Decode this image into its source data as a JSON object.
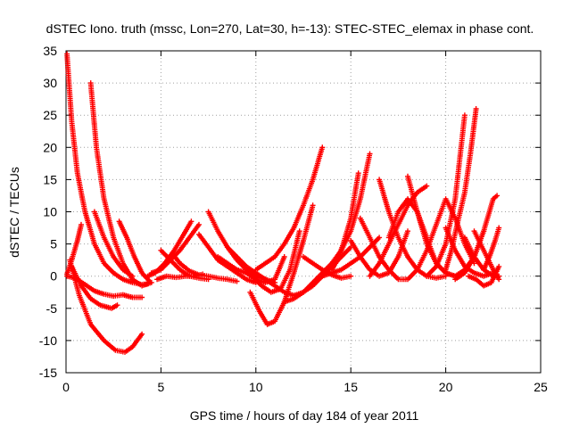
{
  "chart_data": {
    "type": "scatter",
    "title": "dSTEC Iono. truth (mssc, Lon=270, Lat=30, h=-13): STEC-STEC_elemax in phase cont.",
    "xlabel": "GPS time / hours of day 184 of year 2011",
    "ylabel": "dSTEC  / TECUs",
    "xlim": [
      0,
      25
    ],
    "ylim": [
      -15,
      35
    ],
    "x_ticks": [
      "0",
      "5",
      "10",
      "15",
      "20",
      "25"
    ],
    "y_ticks": [
      "-15",
      "-10",
      "-5",
      "0",
      "5",
      "10",
      "15",
      "20",
      "25",
      "30",
      "35"
    ],
    "grid": true,
    "marker": "plus",
    "color": "#ff0000",
    "tracks": [
      {
        "x": [
          0.05,
          0.3,
          0.6,
          1.0,
          1.5,
          2.0,
          2.5,
          3.0,
          3.5,
          4.0,
          4.3
        ],
        "y": [
          34.5,
          24,
          16,
          10,
          5,
          2,
          0.5,
          -0.5,
          -1,
          -1.3,
          -1.2
        ]
      },
      {
        "x": [
          1.3,
          1.6,
          2.0,
          2.5,
          3.0,
          3.5,
          4.0,
          4.5
        ],
        "y": [
          30,
          20,
          12,
          6,
          2,
          -0.5,
          -1.5,
          -1
        ]
      },
      {
        "x": [
          0.05,
          0.3,
          0.6,
          0.8
        ],
        "y": [
          0.3,
          2.5,
          5.5,
          8
        ]
      },
      {
        "x": [
          0.05,
          0.5,
          1.0,
          1.5,
          2.0,
          2.5,
          3.0,
          3.5,
          4.0
        ],
        "y": [
          0,
          -0.3,
          -1.3,
          -2.3,
          -2.8,
          -3.1,
          -2.9,
          -3.3,
          -3.3
        ]
      },
      {
        "x": [
          0.3,
          0.8,
          1.3,
          1.8,
          2.4,
          2.7
        ],
        "y": [
          1.5,
          -1.5,
          -3.5,
          -4.5,
          -5,
          -4.5
        ]
      },
      {
        "x": [
          0.2,
          0.7,
          1.3,
          2.0,
          2.6,
          3.1,
          3.5,
          4.0
        ],
        "y": [
          2.5,
          -3,
          -7.5,
          -10,
          -11.5,
          -11.8,
          -11,
          -9
        ]
      },
      {
        "x": [
          2.8,
          3.2,
          3.6,
          4.0,
          4.4
        ],
        "y": [
          8.5,
          6,
          3,
          0.5,
          -0.8
        ]
      },
      {
        "x": [
          1.5,
          2.0,
          2.5,
          3.0,
          3.5
        ],
        "y": [
          10,
          6,
          3,
          1,
          0
        ]
      },
      {
        "x": [
          4.3,
          4.7,
          5.2,
          5.7,
          6.2,
          6.6
        ],
        "y": [
          0,
          0.5,
          2,
          4,
          6.5,
          8.5
        ]
      },
      {
        "x": [
          4.5,
          5.0,
          5.5,
          6.0,
          6.5,
          7.0
        ],
        "y": [
          0.5,
          1,
          2.5,
          4,
          6,
          8
        ]
      },
      {
        "x": [
          5.0,
          5.5,
          6.0,
          6.5,
          7.0,
          7.5
        ],
        "y": [
          4,
          2.5,
          1,
          0,
          -0.3,
          -0.5
        ]
      },
      {
        "x": [
          4.8,
          5.3,
          5.8,
          6.3,
          6.8,
          7.2
        ],
        "y": [
          -0.5,
          0,
          -0.2,
          0,
          0,
          0.3
        ]
      },
      {
        "x": [
          5.6,
          6.0,
          6.5,
          7.0,
          7.5,
          8.0,
          8.5,
          9.0
        ],
        "y": [
          3.5,
          2,
          0.8,
          0.2,
          0,
          -0.3,
          -0.5,
          -0.8
        ]
      },
      {
        "x": [
          7.0,
          7.5,
          8.0,
          8.5,
          9.0,
          9.5,
          10.0
        ],
        "y": [
          6.5,
          4.5,
          2.5,
          1.5,
          0.5,
          -0.5,
          -1
        ]
      },
      {
        "x": [
          7.5,
          8.0,
          8.5,
          9.0,
          9.5,
          10.0,
          10.5
        ],
        "y": [
          10,
          7,
          4.5,
          2.5,
          1,
          0,
          -0.5
        ]
      },
      {
        "x": [
          8.5,
          9.0,
          9.5,
          10.0,
          10.5,
          11.0
        ],
        "y": [
          4.5,
          3,
          1.5,
          0.5,
          -0.5,
          -1
        ]
      },
      {
        "x": [
          8.0,
          8.5,
          9.0,
          9.5,
          10.0
        ],
        "y": [
          3,
          2,
          1,
          0.5,
          0
        ]
      },
      {
        "x": [
          9.5,
          10.0,
          10.5,
          11.0,
          11.5
        ],
        "y": [
          0.5,
          -0.5,
          -1,
          -0.5,
          3
        ]
      },
      {
        "x": [
          9.8,
          10.3,
          10.8,
          11.3,
          11.8,
          12.3
        ],
        "y": [
          0,
          -1.5,
          -2.5,
          -2,
          1,
          7
        ]
      },
      {
        "x": [
          10.0,
          10.5,
          11.0,
          11.5,
          12.0,
          12.5,
          13.0,
          13.5
        ],
        "y": [
          1,
          2,
          3,
          5,
          7.5,
          11,
          15,
          20
        ]
      },
      {
        "x": [
          9.7,
          10.2,
          10.6,
          11.0,
          11.5,
          12.0,
          12.5,
          13.0
        ],
        "y": [
          -2.5,
          -5.5,
          -7.5,
          -7,
          -4,
          0.5,
          5.5,
          11
        ]
      },
      {
        "x": [
          10.5,
          11.0,
          11.5,
          12.0,
          12.5,
          13.0,
          13.5,
          14.0,
          14.5,
          15.0
        ],
        "y": [
          -0.5,
          -1.5,
          -2.5,
          -3,
          -2.5,
          -1.5,
          0,
          1.5,
          3,
          4.5
        ]
      },
      {
        "x": [
          11.5,
          12.0,
          12.5,
          13.0,
          13.5,
          14.0,
          14.5,
          15.0,
          15.5,
          16.0
        ],
        "y": [
          -4,
          -3.5,
          -2.5,
          -1,
          0.5,
          2,
          4,
          7,
          12,
          19
        ]
      },
      {
        "x": [
          12.5,
          13.0,
          13.5,
          14.0,
          14.5,
          15.0
        ],
        "y": [
          3,
          2,
          1,
          0.2,
          -0.3,
          0
        ]
      },
      {
        "x": [
          13.5,
          14.0,
          14.5,
          15.0,
          15.5,
          16.0,
          16.5
        ],
        "y": [
          0,
          0.5,
          1,
          2,
          3,
          4.5,
          6
        ]
      },
      {
        "x": [
          14.0,
          14.3,
          14.6,
          15.0,
          15.4
        ],
        "y": [
          1,
          2.5,
          5,
          9,
          16
        ]
      },
      {
        "x": [
          15.0,
          15.5,
          16.0,
          16.5,
          17.0,
          17.5,
          18.0
        ],
        "y": [
          5.5,
          3,
          1,
          0,
          0.5,
          3,
          7
        ]
      },
      {
        "x": [
          15.5,
          16.0,
          16.5,
          17.0,
          17.5,
          18.0,
          18.5
        ],
        "y": [
          9,
          6,
          3,
          1,
          -0.5,
          -0.5,
          1
        ]
      },
      {
        "x": [
          16.0,
          16.5,
          17.0,
          17.5,
          18.0,
          18.5,
          19.0
        ],
        "y": [
          0,
          2,
          5,
          8,
          11,
          13,
          14
        ]
      },
      {
        "x": [
          16.5,
          17.0,
          17.5,
          18.0,
          18.5,
          19.0,
          19.5,
          20.0
        ],
        "y": [
          15,
          10,
          6,
          3,
          1,
          0,
          -0.3,
          0
        ]
      },
      {
        "x": [
          17.0,
          17.5,
          18.0,
          18.5,
          19.0,
          19.5
        ],
        "y": [
          6,
          10,
          12,
          10,
          6,
          2
        ]
      },
      {
        "x": [
          18.0,
          18.5,
          19.0,
          19.5,
          20.0,
          20.5
        ],
        "y": [
          15.5,
          10,
          5,
          2,
          0.5,
          0
        ]
      },
      {
        "x": [
          18.5,
          19.0,
          19.5,
          20.0,
          20.5,
          21.0,
          21.5
        ],
        "y": [
          1,
          4,
          8,
          12,
          9,
          5,
          2
        ]
      },
      {
        "x": [
          19.0,
          19.5,
          20.0,
          20.5,
          21.0
        ],
        "y": [
          0,
          1.5,
          5,
          12,
          25
        ]
      },
      {
        "x": [
          19.5,
          20.0,
          20.5,
          21.0,
          21.5,
          22.0
        ],
        "y": [
          2,
          0.5,
          0,
          1,
          3,
          7
        ]
      },
      {
        "x": [
          20.0,
          20.5,
          21.0,
          21.5,
          22.0,
          22.5
        ],
        "y": [
          7.5,
          4,
          1.5,
          0.5,
          0,
          0.5
        ]
      },
      {
        "x": [
          20.0,
          20.3,
          20.6,
          21.0,
          21.3,
          21.6
        ],
        "y": [
          1,
          4,
          8,
          13,
          19,
          26
        ]
      },
      {
        "x": [
          20.5,
          21.0,
          21.5,
          22.0,
          22.5,
          22.7
        ],
        "y": [
          -0.5,
          0.5,
          3,
          7,
          12,
          12.5
        ]
      },
      {
        "x": [
          21.0,
          21.5,
          22.0,
          22.5,
          22.8
        ],
        "y": [
          6,
          3,
          1,
          0,
          0
        ]
      },
      {
        "x": [
          21.5,
          22.0,
          22.5,
          22.8
        ],
        "y": [
          7,
          4,
          1,
          -0.5
        ]
      },
      {
        "x": [
          22.0,
          22.3,
          22.6,
          22.8
        ],
        "y": [
          1,
          3,
          5.5,
          7.5
        ]
      },
      {
        "x": [
          21.2,
          21.6,
          22.0,
          22.4,
          22.8
        ],
        "y": [
          0,
          -0.5,
          -1.5,
          -1,
          1.5
        ]
      }
    ]
  }
}
